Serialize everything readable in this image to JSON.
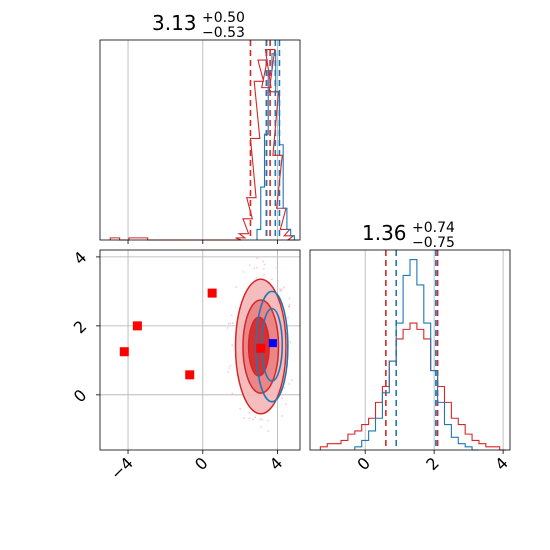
{
  "colors": {
    "red": "#d62728",
    "blue": "#1f77b4",
    "red_fill": "#e8888a",
    "blue_point": "#0000ff",
    "marker_red": "#ff0000",
    "grid": "#b0b0b0"
  },
  "chart_data": {
    "type": "corner",
    "grid": true,
    "panels": [
      {
        "id": "hist-param1",
        "type": "step-histogram",
        "title": {
          "value": "3.13",
          "plus": "+0.50",
          "minus": "−0.53"
        },
        "xlim": [
          -5.5,
          5.2
        ],
        "x_gridlines": [
          -4,
          0,
          4
        ],
        "quantile_lines": {
          "red": [
            2.55,
            3.41,
            3.6
          ],
          "blue": [
            3.4,
            3.88,
            4.1
          ]
        },
        "series": [
          {
            "name": "red",
            "x": [
              -4.7,
              -4.2,
              -3.7,
              -3.2,
              -2.7,
              -2.2,
              -1.7,
              -1.2,
              -0.7,
              -0.2,
              0.3,
              0.8,
              1.3,
              1.8,
              2.0,
              2.2,
              2.4,
              2.6,
              2.8,
              3.0,
              3.2,
              3.4,
              3.6,
              3.8,
              4.0,
              4.2,
              4.4,
              4.6,
              4.8
            ],
            "values": [
              1,
              0,
              1,
              1,
              0,
              0,
              0,
              0,
              0,
              0,
              0,
              0,
              0,
              0,
              1,
              3,
              10,
              20,
              48,
              75,
              85,
              72,
              90,
              70,
              40,
              15,
              5,
              2,
              0
            ]
          },
          {
            "name": "blue",
            "x": [
              3.0,
              3.2,
              3.4,
              3.6,
              3.8,
              4.0,
              4.2,
              4.4,
              4.6,
              4.8,
              5.0
            ],
            "values": [
              5,
              25,
              50,
              80,
              88,
              70,
              45,
              15,
              5,
              2,
              0
            ]
          }
        ]
      },
      {
        "id": "hist-param2",
        "type": "step-histogram",
        "title": {
          "value": "1.36",
          "plus": "+0.74",
          "minus": "−0.75"
        },
        "xlim": [
          -1.6,
          4.2
        ],
        "x_ticks": [
          0,
          2,
          4
        ],
        "x_gridlines": [
          0,
          2,
          4
        ],
        "quantile_lines": {
          "red": [
            0.6,
            2.1
          ],
          "blue": [
            0.9,
            2.05
          ]
        },
        "series": [
          {
            "name": "red",
            "x": [
              -1.2,
              -1.0,
              -0.8,
              -0.6,
              -0.4,
              -0.2,
              0.0,
              0.2,
              0.4,
              0.6,
              0.8,
              1.0,
              1.2,
              1.4,
              1.6,
              1.8,
              2.0,
              2.2,
              2.4,
              2.6,
              2.8,
              3.0,
              3.2,
              3.4,
              3.6,
              3.8,
              4.0
            ],
            "values": [
              1,
              2,
              2,
              3,
              5,
              6,
              8,
              10,
              15,
              20,
              28,
              35,
              38,
              40,
              38,
              35,
              25,
              20,
              15,
              10,
              8,
              5,
              3,
              2,
              1,
              1,
              0
            ]
          },
          {
            "name": "blue",
            "x": [
              -0.2,
              0.0,
              0.2,
              0.4,
              0.6,
              0.8,
              1.0,
              1.2,
              1.4,
              1.6,
              1.8,
              2.0,
              2.2,
              2.4,
              2.6,
              2.8,
              3.0,
              3.2
            ],
            "values": [
              1,
              3,
              6,
              10,
              18,
              28,
              40,
              55,
              60,
              52,
              40,
              25,
              15,
              8,
              4,
              2,
              1,
              0
            ]
          }
        ]
      },
      {
        "id": "joint-param1-param2",
        "type": "2d-contour",
        "xlim": [
          -5.5,
          5.2
        ],
        "ylim": [
          -1.6,
          4.2
        ],
        "x_ticks": [
          -4,
          0,
          4
        ],
        "y_ticks": [
          0,
          2,
          4
        ],
        "red_markers": [
          [
            0.5,
            2.95
          ],
          [
            -3.5,
            2.0
          ],
          [
            -4.2,
            1.25
          ],
          [
            -0.7,
            0.58
          ],
          [
            3.1,
            1.35
          ]
        ],
        "blue_markers": [
          [
            3.75,
            1.5
          ]
        ],
        "red_contours": [
          {
            "cx": 3.1,
            "cy": 1.4,
            "rx": 1.35,
            "ry": 1.95
          },
          {
            "cx": 3.1,
            "cy": 1.4,
            "rx": 0.95,
            "ry": 1.35
          },
          {
            "cx": 3.0,
            "cy": 1.4,
            "rx": 0.55,
            "ry": 0.85
          }
        ],
        "blue_contours": [
          {
            "cx": 3.7,
            "cy": 1.4,
            "rx": 0.85,
            "ry": 1.6
          },
          {
            "cx": 3.7,
            "cy": 1.45,
            "rx": 0.55,
            "ry": 1.05
          }
        ]
      }
    ]
  }
}
